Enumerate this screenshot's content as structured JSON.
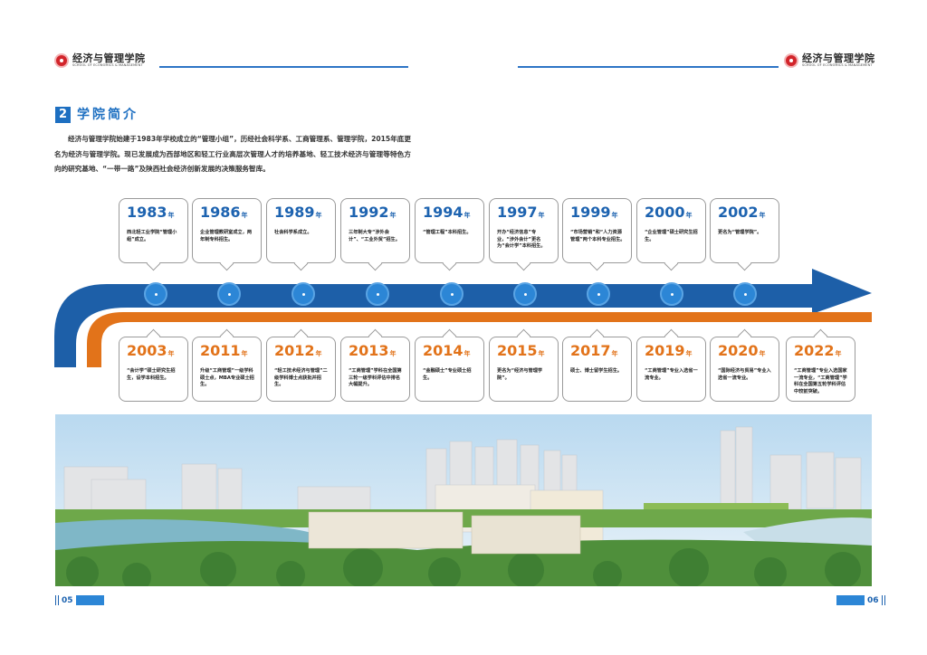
{
  "header": {
    "logo_cn": "经济与管理学院",
    "logo_en": "SCHOOL OF ECONOMICS & MANAGEMENT"
  },
  "section": {
    "number": "2",
    "title": "学院简介"
  },
  "intro_text": "经济与管理学院始建于1983年学校成立的“管理小组”，历经社会科学系、工商管理系、管理学院，2015年底更名为经济与管理学院。现已发展成为西部地区和轻工行业高层次管理人才的培养基地、轻工技术经济与管理等特色方向的研究基地、“一带一路”及陕西社会经济创新发展的决策服务智库。",
  "year_unit": "年",
  "timeline_top": [
    {
      "year": "1983",
      "desc": "西北轻工业学院“管理小组”成立。"
    },
    {
      "year": "1986",
      "desc": "企业管理教研室成立，两年制专科招生。"
    },
    {
      "year": "1989",
      "desc": "社会科学系成立。"
    },
    {
      "year": "1992",
      "desc": "三年制大专“涉外会计”、“工业外贸”招生。"
    },
    {
      "year": "1994",
      "desc": "“管理工程”本科招生。"
    },
    {
      "year": "1997",
      "desc": "开办“经济信息”专业，“涉外会计”更名为“会计学”本科招生。"
    },
    {
      "year": "1999",
      "desc": "“市场营销”和“人力资源管理”两个本科专业招生。"
    },
    {
      "year": "2000",
      "desc": "“企业管理”硕士研究生招生。"
    },
    {
      "year": "2002",
      "desc": "更名为“管理学院”。"
    }
  ],
  "timeline_bottom": [
    {
      "year": "2003",
      "desc": "“会计学”硕士研究生招生，设学本科招生。"
    },
    {
      "year": "2011",
      "desc": "升级“工商管理”一级学科硕士点，MBA专业硕士招生。"
    },
    {
      "year": "2012",
      "desc": "“轻工技术经济与管理”二级学科博士点获批并招生。"
    },
    {
      "year": "2013",
      "desc": "“工商管理”学科在全国第三轮一级学科评估中排名大幅提升。"
    },
    {
      "year": "2014",
      "desc": "“金融硕士”专业硕士招生。"
    },
    {
      "year": "2015",
      "desc": "更名为“经济与管理学院”。"
    },
    {
      "year": "2017",
      "desc": "硕士、博士留学生招生。"
    },
    {
      "year": "2019",
      "desc": "“工商管理”专业入选省一流专业。"
    },
    {
      "year": "2020",
      "desc": "“国际经济与贸易”专业入选省一流专业。"
    },
    {
      "year": "2022",
      "desc": "“工商管理”专业入选国家一流专业，“工商管理”学科在全国第五轮学科评估中较前突破。"
    }
  ],
  "footer": {
    "page_left": "05",
    "page_right": "06"
  },
  "colors": {
    "accent_blue": "#1d63b0",
    "accent_orange": "#e2731a"
  }
}
